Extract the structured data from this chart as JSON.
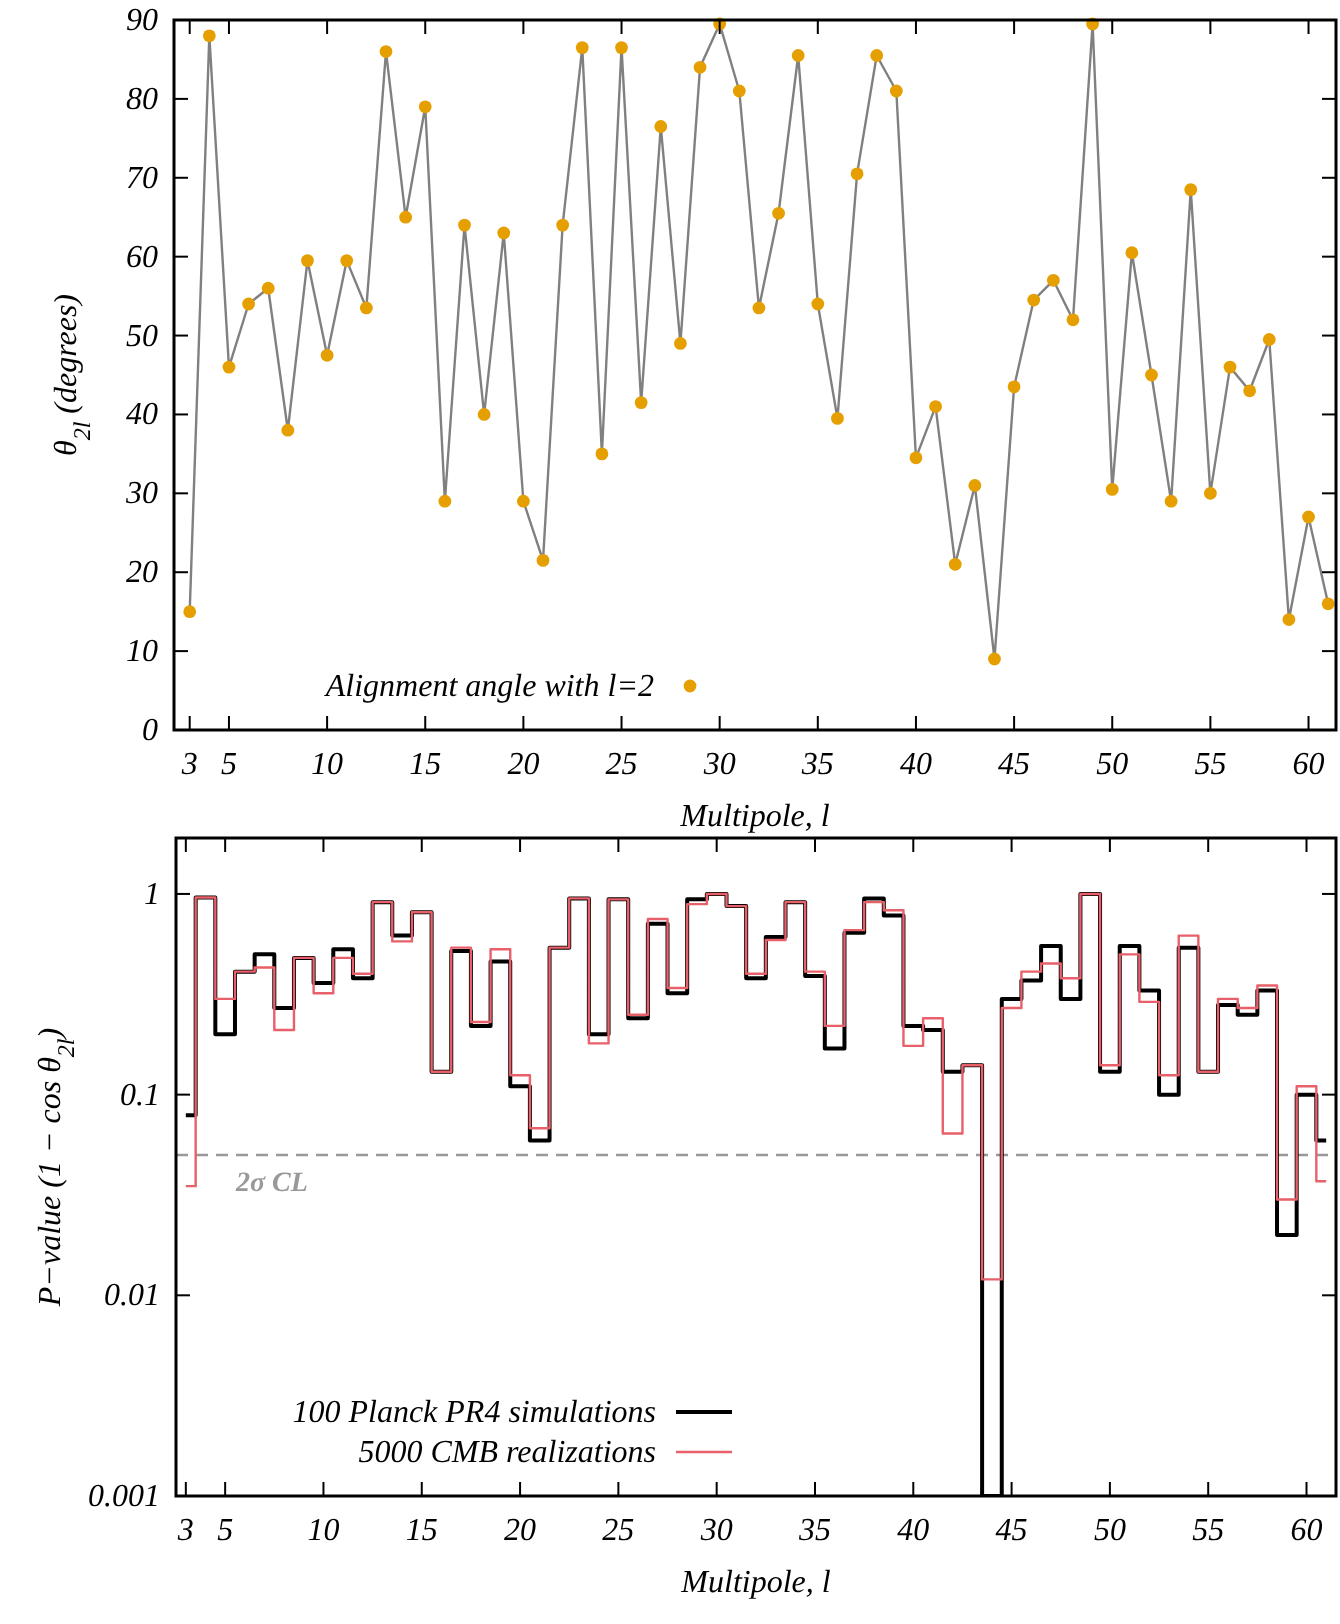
{
  "chart_data": [
    {
      "type": "line",
      "xlabel": "Multipole, l",
      "ylabel": "θ$_{2l}$ (degrees)",
      "x": [
        3,
        4,
        5,
        6,
        7,
        8,
        9,
        10,
        11,
        12,
        13,
        14,
        15,
        16,
        17,
        18,
        19,
        20,
        21,
        22,
        23,
        24,
        25,
        26,
        27,
        28,
        29,
        30,
        31,
        32,
        33,
        34,
        35,
        36,
        37,
        38,
        39,
        40,
        41,
        42,
        43,
        44,
        45,
        46,
        47,
        48,
        49,
        50,
        51,
        52,
        53,
        54,
        55,
        56,
        57,
        58,
        59,
        60,
        61
      ],
      "series": [
        {
          "color": "#808080",
          "values": [
            15,
            88,
            46,
            54,
            56,
            38,
            59.5,
            47.5,
            59.5,
            53.5,
            86,
            65,
            79,
            29,
            64,
            40,
            63,
            29,
            21.5,
            64,
            86.5,
            35,
            86.5,
            41.5,
            76.5,
            49,
            84,
            89.5,
            81,
            53.5,
            65.5,
            85.5,
            54,
            39.5,
            70.5,
            85.5,
            81,
            34.5,
            41,
            21,
            31,
            9,
            43.5,
            54.5,
            57,
            52,
            89.5,
            30.5,
            60.5,
            45,
            29,
            68.5,
            30,
            46,
            43,
            49.5,
            14,
            27,
            16
          ]
        },
        {
          "type": "scatter",
          "name": "Alignment angle with l=2",
          "color": "#e69f00",
          "marker": "circle",
          "values": [
            15,
            88,
            46,
            54,
            56,
            38,
            59.5,
            47.5,
            59.5,
            53.5,
            86,
            65,
            79,
            29,
            64,
            40,
            63,
            29,
            21.5,
            64,
            86.5,
            35,
            86.5,
            41.5,
            76.5,
            49,
            84,
            89.5,
            81,
            53.5,
            65.5,
            85.5,
            54,
            39.5,
            70.5,
            85.5,
            81,
            34.5,
            41,
            21,
            31,
            9,
            43.5,
            54.5,
            57,
            52,
            89.5,
            30.5,
            60.5,
            45,
            29,
            68.5,
            30,
            46,
            43,
            49.5,
            14,
            27,
            16
          ]
        }
      ],
      "xlim": [
        2.2,
        61.4
      ],
      "xticks": [
        3,
        5,
        10,
        15,
        20,
        25,
        30,
        35,
        40,
        45,
        50,
        55,
        60
      ],
      "ylim": [
        0,
        90
      ],
      "yticks": [
        0,
        10,
        20,
        30,
        40,
        50,
        60,
        70,
        80,
        90
      ],
      "legend": "bottom left"
    },
    {
      "type": "step",
      "xlabel": "Multipole, l",
      "ylabel": "P−value (1 − cos θ$_{2l}$)",
      "x": [
        3,
        4,
        5,
        6,
        7,
        8,
        9,
        10,
        11,
        12,
        13,
        14,
        15,
        16,
        17,
        18,
        19,
        20,
        21,
        22,
        23,
        24,
        25,
        26,
        27,
        28,
        29,
        30,
        31,
        32,
        33,
        34,
        35,
        36,
        37,
        38,
        39,
        40,
        41,
        42,
        43,
        44,
        45,
        46,
        47,
        48,
        49,
        50,
        51,
        52,
        53,
        54,
        55,
        56,
        57,
        58,
        59,
        60,
        61
      ],
      "series": [
        {
          "name": "100 Planck PR4 simulations",
          "color": "#000000",
          "values": [
            0.079,
            0.96,
            0.2,
            0.41,
            0.5,
            0.27,
            0.48,
            0.36,
            0.53,
            0.38,
            0.91,
            0.62,
            0.81,
            0.13,
            0.52,
            0.22,
            0.46,
            0.11,
            0.059,
            0.54,
            0.95,
            0.2,
            0.94,
            0.24,
            0.71,
            0.32,
            0.94,
            1.0,
            0.87,
            0.38,
            0.61,
            0.91,
            0.39,
            0.17,
            0.64,
            0.95,
            0.78,
            0.22,
            0.21,
            0.13,
            0.14,
            0.001,
            0.3,
            0.37,
            0.55,
            0.3,
            1.0,
            0.13,
            0.55,
            0.33,
            0.1,
            0.54,
            0.13,
            0.28,
            0.25,
            0.33,
            0.02,
            0.1,
            0.059
          ]
        },
        {
          "name": "5000 CMB realizations",
          "color": "#e8606a",
          "values": [
            0.035,
            0.96,
            0.3,
            0.41,
            0.43,
            0.21,
            0.48,
            0.32,
            0.48,
            0.4,
            0.91,
            0.58,
            0.81,
            0.13,
            0.54,
            0.23,
            0.53,
            0.125,
            0.068,
            0.54,
            0.95,
            0.18,
            0.94,
            0.25,
            0.75,
            0.34,
            0.89,
            1.0,
            0.87,
            0.4,
            0.59,
            0.91,
            0.41,
            0.22,
            0.66,
            0.91,
            0.83,
            0.175,
            0.24,
            0.064,
            0.14,
            0.012,
            0.27,
            0.41,
            0.45,
            0.38,
            1.0,
            0.14,
            0.5,
            0.29,
            0.125,
            0.62,
            0.13,
            0.3,
            0.27,
            0.35,
            0.03,
            0.11,
            0.037
          ]
        }
      ],
      "xlim": [
        2.5,
        61.5
      ],
      "xticks": [
        3,
        5,
        10,
        15,
        20,
        25,
        30,
        35,
        40,
        45,
        50,
        55,
        60
      ],
      "ylim": [
        0.001,
        1.9
      ],
      "yticks": [
        0.001,
        0.01,
        0.1,
        1
      ],
      "log": true,
      "ref_lines": [
        {
          "axis": "y",
          "value": 0.05,
          "label": "2σ CL",
          "color": "#999999",
          "line_style": "dashed"
        }
      ],
      "legend": "bottom left"
    }
  ]
}
